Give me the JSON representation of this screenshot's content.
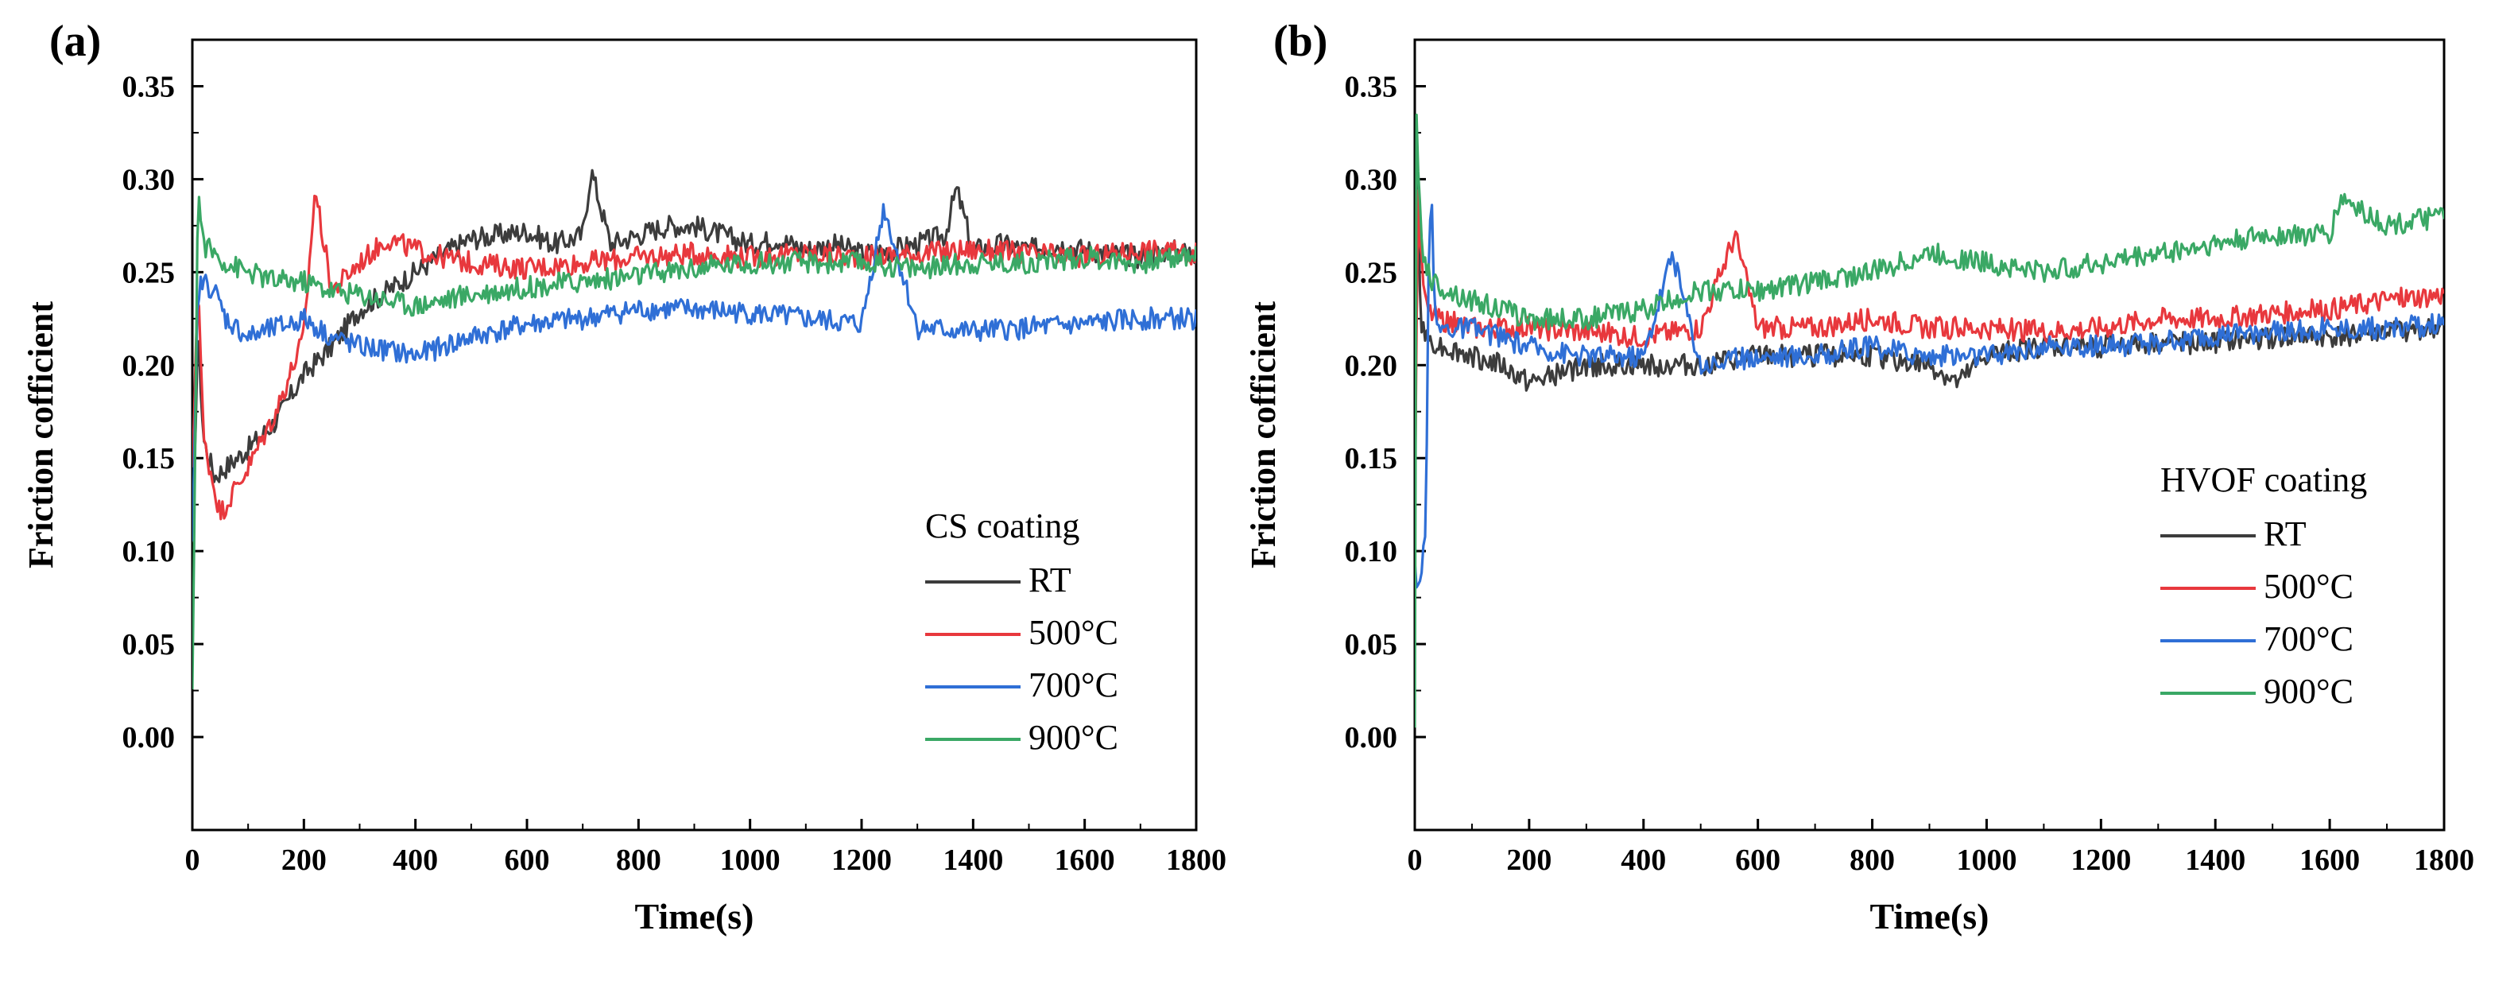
{
  "chart_data": [
    {
      "type": "line",
      "panel_label": "(a)",
      "xlabel": "Time(s)",
      "ylabel": "Friction cofficient",
      "xlim": [
        0,
        1800
      ],
      "ylim": [
        -0.05,
        0.375
      ],
      "xticks": [
        0,
        200,
        400,
        600,
        800,
        1000,
        1200,
        1400,
        1600,
        1800
      ],
      "yticks": [
        0.0,
        0.05,
        0.1,
        0.15,
        0.2,
        0.25,
        0.3,
        0.35
      ],
      "legend_title": "CS coating",
      "legend_position": "center-right",
      "series": [
        {
          "name": "RT",
          "color": "#3c3c3c",
          "x": [
            0,
            10,
            20,
            40,
            60,
            100,
            150,
            200,
            250,
            300,
            350,
            400,
            450,
            500,
            550,
            600,
            650,
            700,
            715,
            750,
            800,
            850,
            900,
            950,
            1000,
            1050,
            1100,
            1150,
            1200,
            1250,
            1300,
            1350,
            1370,
            1400,
            1450,
            1500,
            1550,
            1600,
            1650,
            1700,
            1750,
            1800
          ],
          "y": [
            0.1,
            0.22,
            0.16,
            0.14,
            0.145,
            0.155,
            0.17,
            0.195,
            0.21,
            0.23,
            0.24,
            0.25,
            0.26,
            0.268,
            0.27,
            0.272,
            0.265,
            0.27,
            0.305,
            0.265,
            0.27,
            0.275,
            0.275,
            0.27,
            0.265,
            0.268,
            0.262,
            0.265,
            0.26,
            0.262,
            0.265,
            0.27,
            0.295,
            0.262,
            0.265,
            0.262,
            0.265,
            0.262,
            0.26,
            0.258,
            0.262,
            0.26
          ]
        },
        {
          "name": "500°C",
          "color": "#e8383d",
          "x": [
            0,
            10,
            20,
            50,
            100,
            150,
            200,
            220,
            250,
            300,
            350,
            400,
            450,
            500,
            600,
            700,
            800,
            900,
            1000,
            1100,
            1200,
            1300,
            1400,
            1500,
            1600,
            1700,
            1800
          ],
          "y": [
            0.14,
            0.25,
            0.16,
            0.12,
            0.145,
            0.175,
            0.215,
            0.295,
            0.24,
            0.255,
            0.268,
            0.262,
            0.258,
            0.255,
            0.252,
            0.255,
            0.258,
            0.26,
            0.258,
            0.26,
            0.258,
            0.26,
            0.262,
            0.26,
            0.258,
            0.262,
            0.26
          ]
        },
        {
          "name": "700°C",
          "color": "#2f6fd6",
          "x": [
            0,
            10,
            20,
            40,
            60,
            100,
            150,
            200,
            250,
            300,
            350,
            400,
            450,
            500,
            600,
            700,
            800,
            900,
            1000,
            1100,
            1200,
            1240,
            1300,
            1400,
            1500,
            1600,
            1700,
            1800
          ],
          "y": [
            0.1,
            0.24,
            0.245,
            0.24,
            0.225,
            0.215,
            0.22,
            0.225,
            0.215,
            0.21,
            0.208,
            0.205,
            0.21,
            0.215,
            0.222,
            0.225,
            0.23,
            0.23,
            0.228,
            0.225,
            0.222,
            0.285,
            0.22,
            0.218,
            0.22,
            0.222,
            0.225,
            0.225
          ]
        },
        {
          "name": "900°C",
          "color": "#3aa865",
          "x": [
            0,
            10,
            20,
            40,
            60,
            100,
            150,
            200,
            250,
            300,
            350,
            400,
            450,
            500,
            600,
            700,
            800,
            900,
            1000,
            1100,
            1200,
            1300,
            1400,
            1500,
            1600,
            1700,
            1800
          ],
          "y": [
            0.02,
            0.295,
            0.265,
            0.26,
            0.255,
            0.25,
            0.245,
            0.245,
            0.24,
            0.238,
            0.235,
            0.232,
            0.235,
            0.238,
            0.242,
            0.245,
            0.248,
            0.252,
            0.255,
            0.255,
            0.255,
            0.252,
            0.255,
            0.255,
            0.258,
            0.255,
            0.26
          ]
        }
      ]
    },
    {
      "type": "line",
      "panel_label": "(b)",
      "xlabel": "Time(s)",
      "ylabel": "Friction cofficient",
      "xlim": [
        0,
        1800
      ],
      "ylim": [
        -0.05,
        0.375
      ],
      "xticks": [
        0,
        200,
        400,
        600,
        800,
        1000,
        1200,
        1400,
        1600,
        1800
      ],
      "yticks": [
        0.0,
        0.05,
        0.1,
        0.15,
        0.2,
        0.25,
        0.3,
        0.35
      ],
      "legend_title": "HVOF coating",
      "legend_position": "center-right",
      "series": [
        {
          "name": "RT",
          "color": "#3c3c3c",
          "x": [
            0,
            5,
            10,
            20,
            50,
            100,
            150,
            200,
            250,
            300,
            400,
            500,
            600,
            700,
            800,
            900,
            950,
            1000,
            1100,
            1200,
            1300,
            1400,
            1500,
            1600,
            1700,
            1800
          ],
          "y": [
            0.14,
            0.32,
            0.22,
            0.215,
            0.21,
            0.205,
            0.2,
            0.19,
            0.195,
            0.2,
            0.2,
            0.2,
            0.205,
            0.205,
            0.205,
            0.2,
            0.19,
            0.205,
            0.21,
            0.21,
            0.212,
            0.212,
            0.215,
            0.215,
            0.218,
            0.22
          ]
        },
        {
          "name": "500°C",
          "color": "#e8383d",
          "x": [
            0,
            5,
            10,
            20,
            40,
            100,
            200,
            300,
            400,
            500,
            560,
            600,
            700,
            800,
            900,
            1000,
            1100,
            1200,
            1300,
            1400,
            1500,
            1600,
            1700,
            1800
          ],
          "y": [
            0.11,
            0.3,
            0.26,
            0.23,
            0.225,
            0.22,
            0.22,
            0.218,
            0.215,
            0.22,
            0.27,
            0.22,
            0.22,
            0.225,
            0.22,
            0.22,
            0.218,
            0.22,
            0.225,
            0.225,
            0.228,
            0.23,
            0.235,
            0.238
          ]
        },
        {
          "name": "700°C",
          "color": "#2f6fd6",
          "x": [
            0,
            5,
            10,
            20,
            25,
            30,
            35,
            40,
            100,
            200,
            300,
            400,
            450,
            500,
            600,
            700,
            800,
            900,
            1000,
            1100,
            1200,
            1300,
            1400,
            1500,
            1600,
            1700,
            1800
          ],
          "y": [
            0.09,
            0.075,
            0.08,
            0.12,
            0.28,
            0.29,
            0.225,
            0.22,
            0.22,
            0.21,
            0.205,
            0.205,
            0.26,
            0.2,
            0.205,
            0.205,
            0.21,
            0.205,
            0.205,
            0.21,
            0.21,
            0.212,
            0.215,
            0.218,
            0.22,
            0.22,
            0.222
          ]
        },
        {
          "name": "900°C",
          "color": "#3aa865",
          "x": [
            0,
            3,
            8,
            15,
            30,
            60,
            100,
            200,
            300,
            400,
            500,
            600,
            700,
            800,
            900,
            1000,
            1100,
            1200,
            1300,
            1400,
            1500,
            1600,
            1620,
            1700,
            1800
          ],
          "y": [
            0.0,
            0.33,
            0.29,
            0.26,
            0.245,
            0.24,
            0.235,
            0.225,
            0.225,
            0.23,
            0.24,
            0.24,
            0.245,
            0.25,
            0.26,
            0.255,
            0.25,
            0.255,
            0.26,
            0.265,
            0.27,
            0.27,
            0.29,
            0.275,
            0.28
          ]
        }
      ]
    }
  ]
}
